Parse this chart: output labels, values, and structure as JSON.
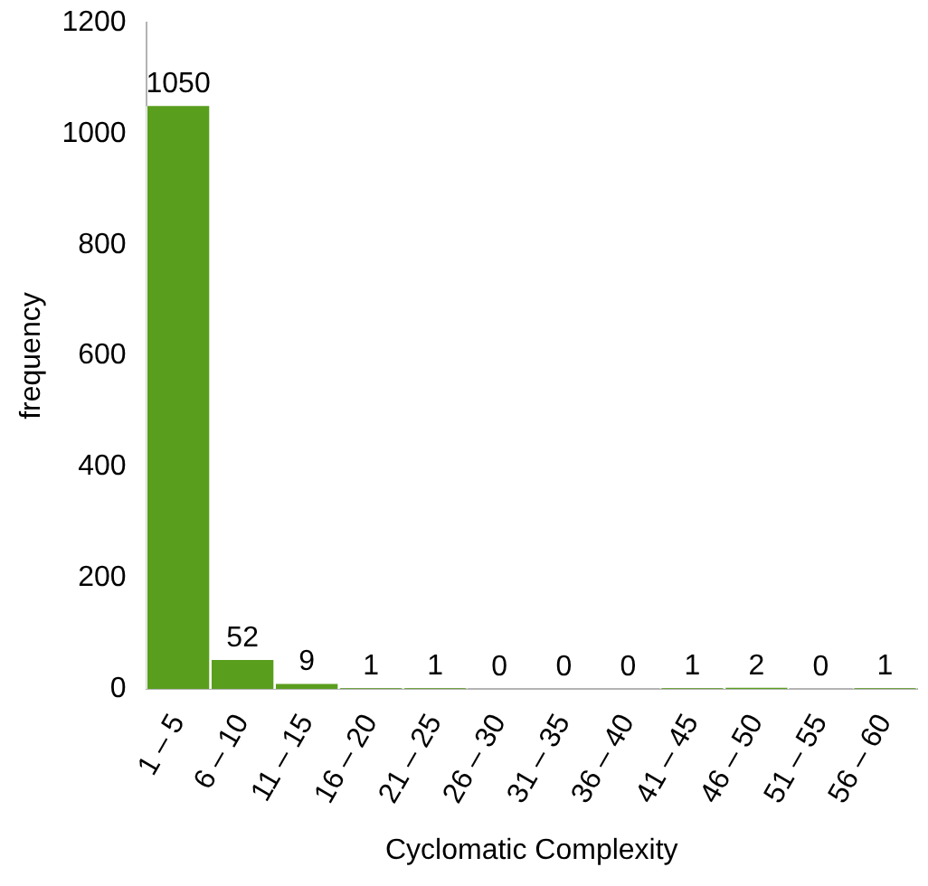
{
  "chart_data": {
    "type": "bar",
    "xlabel": "Cyclomatic Complexity",
    "ylabel": "frequency",
    "categories": [
      "1 – 5",
      "6 – 10",
      "11 – 15",
      "16 – 20",
      "21 – 25",
      "26 – 30",
      "31 – 35",
      "36 – 40",
      "41 – 45",
      "46 – 50",
      "51 – 55",
      "56 – 60"
    ],
    "values": [
      1050,
      52,
      9,
      1,
      1,
      0,
      0,
      0,
      1,
      2,
      0,
      1
    ],
    "color": "#5a9e1e",
    "ylim": [
      0,
      1200
    ],
    "yticks": [
      0,
      200,
      400,
      600,
      800,
      1000,
      1200
    ],
    "data_labels": true
  }
}
